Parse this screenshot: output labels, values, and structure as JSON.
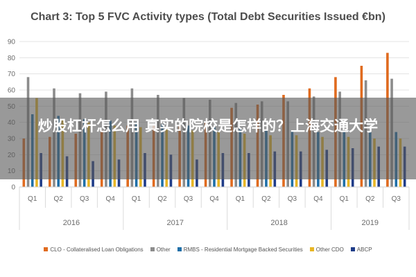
{
  "chart_data": {
    "type": "bar",
    "title": "Chart 3: Top 5 FVC Activity types (Total Debt Securities Issued €bn)",
    "ylim": [
      0,
      90
    ],
    "yticks": [
      0,
      10,
      20,
      30,
      40,
      50,
      60,
      70,
      80,
      90
    ],
    "grid": true,
    "legend_position": "bottom",
    "categories": [
      "Q1",
      "Q2",
      "Q3",
      "Q4",
      "Q1",
      "Q2",
      "Q3",
      "Q4",
      "Q1",
      "Q2",
      "Q3",
      "Q4",
      "Q1",
      "Q2",
      "Q3"
    ],
    "year_groups": [
      {
        "label": "2016",
        "count": 4
      },
      {
        "label": "2017",
        "count": 4
      },
      {
        "label": "2018",
        "count": 4
      },
      {
        "label": "2019",
        "count": 3
      }
    ],
    "series": [
      {
        "name": "CLO - Collateralised Loan Obligations",
        "color": "#e06b1f",
        "values": [
          30,
          31,
          33,
          35,
          38,
          38,
          38,
          40,
          49,
          51,
          57,
          61,
          68,
          75,
          83
        ]
      },
      {
        "name": "Other",
        "color": "#8c8c8c",
        "values": [
          68,
          61,
          58,
          59,
          61,
          57,
          55,
          54,
          52,
          53,
          53,
          56,
          59,
          66,
          67
        ]
      },
      {
        "name": "RMBS - Residential Mortgage Backed Securities",
        "color": "#1f6fa8",
        "values": [
          45,
          44,
          42,
          41,
          40,
          39,
          38,
          37,
          36,
          35,
          35,
          34,
          34,
          34,
          34
        ]
      },
      {
        "name": "Other CDO",
        "color": "#e8b624",
        "values": [
          55,
          42,
          40,
          38,
          37,
          36,
          35,
          34,
          33,
          32,
          32,
          31,
          31,
          30,
          30
        ]
      },
      {
        "name": "ABCP",
        "color": "#1f3c88",
        "values": [
          21,
          19,
          16,
          17,
          21,
          20,
          17,
          21,
          21,
          22,
          22,
          23,
          24,
          25,
          25
        ]
      }
    ]
  },
  "overlay": {
    "text": "炒股杠杆怎么用 真实的院校是怎样的？上海交通大学"
  }
}
